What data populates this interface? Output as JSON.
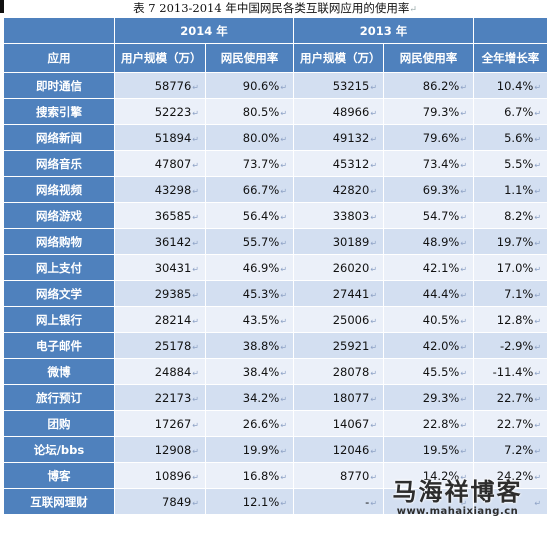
{
  "caption": "表 7    2013-2014 年中国网民各类互联网应用的使用率",
  "caption_mark": "↵",
  "header": {
    "year_2014": "2014 年",
    "year_2013": "2013 年",
    "app": "应用",
    "users": "用户规模（万）",
    "rate": "网民使用率",
    "growth": "全年增长率"
  },
  "rows": [
    {
      "name": "即时通信",
      "u14": "58776",
      "r14": "90.6%",
      "u13": "53215",
      "r13": "86.2%",
      "g": "10.4%"
    },
    {
      "name": "搜索引擎",
      "u14": "52223",
      "r14": "80.5%",
      "u13": "48966",
      "r13": "79.3%",
      "g": "6.7%"
    },
    {
      "name": "网络新闻",
      "u14": "51894",
      "r14": "80.0%",
      "u13": "49132",
      "r13": "79.6%",
      "g": "5.6%"
    },
    {
      "name": "网络音乐",
      "u14": "47807",
      "r14": "73.7%",
      "u13": "45312",
      "r13": "73.4%",
      "g": "5.5%"
    },
    {
      "name": "网络视频",
      "u14": "43298",
      "r14": "66.7%",
      "u13": "42820",
      "r13": "69.3%",
      "g": "1.1%"
    },
    {
      "name": "网络游戏",
      "u14": "36585",
      "r14": "56.4%",
      "u13": "33803",
      "r13": "54.7%",
      "g": "8.2%"
    },
    {
      "name": "网络购物",
      "u14": "36142",
      "r14": "55.7%",
      "u13": "30189",
      "r13": "48.9%",
      "g": "19.7%"
    },
    {
      "name": "网上支付",
      "u14": "30431",
      "r14": "46.9%",
      "u13": "26020",
      "r13": "42.1%",
      "g": "17.0%"
    },
    {
      "name": "网络文学",
      "u14": "29385",
      "r14": "45.3%",
      "u13": "27441",
      "r13": "44.4%",
      "g": "7.1%"
    },
    {
      "name": "网上银行",
      "u14": "28214",
      "r14": "43.5%",
      "u13": "25006",
      "r13": "40.5%",
      "g": "12.8%"
    },
    {
      "name": "电子邮件",
      "u14": "25178",
      "r14": "38.8%",
      "u13": "25921",
      "r13": "42.0%",
      "g": "-2.9%"
    },
    {
      "name": "微博",
      "u14": "24884",
      "r14": "38.4%",
      "u13": "28078",
      "r13": "45.5%",
      "g": "-11.4%"
    },
    {
      "name": "旅行预订",
      "u14": "22173",
      "r14": "34.2%",
      "u13": "18077",
      "r13": "29.3%",
      "g": "22.7%"
    },
    {
      "name": "团购",
      "u14": "17267",
      "r14": "26.6%",
      "u13": "14067",
      "r13": "22.8%",
      "g": "22.7%"
    },
    {
      "name": "论坛/bbs",
      "u14": "12908",
      "r14": "19.9%",
      "u13": "12046",
      "r13": "19.5%",
      "g": "7.2%"
    },
    {
      "name": "博客",
      "u14": "10896",
      "r14": "16.8%",
      "u13": "8770",
      "r13": "14.2%",
      "g": "24.2%"
    },
    {
      "name": "互联网理财",
      "u14": "7849",
      "r14": "12.1%",
      "u13": "-",
      "r13": "",
      "g": ""
    }
  ],
  "watermark": {
    "title": "马海祥博客",
    "url": "www.mahaixiang.cn"
  }
}
